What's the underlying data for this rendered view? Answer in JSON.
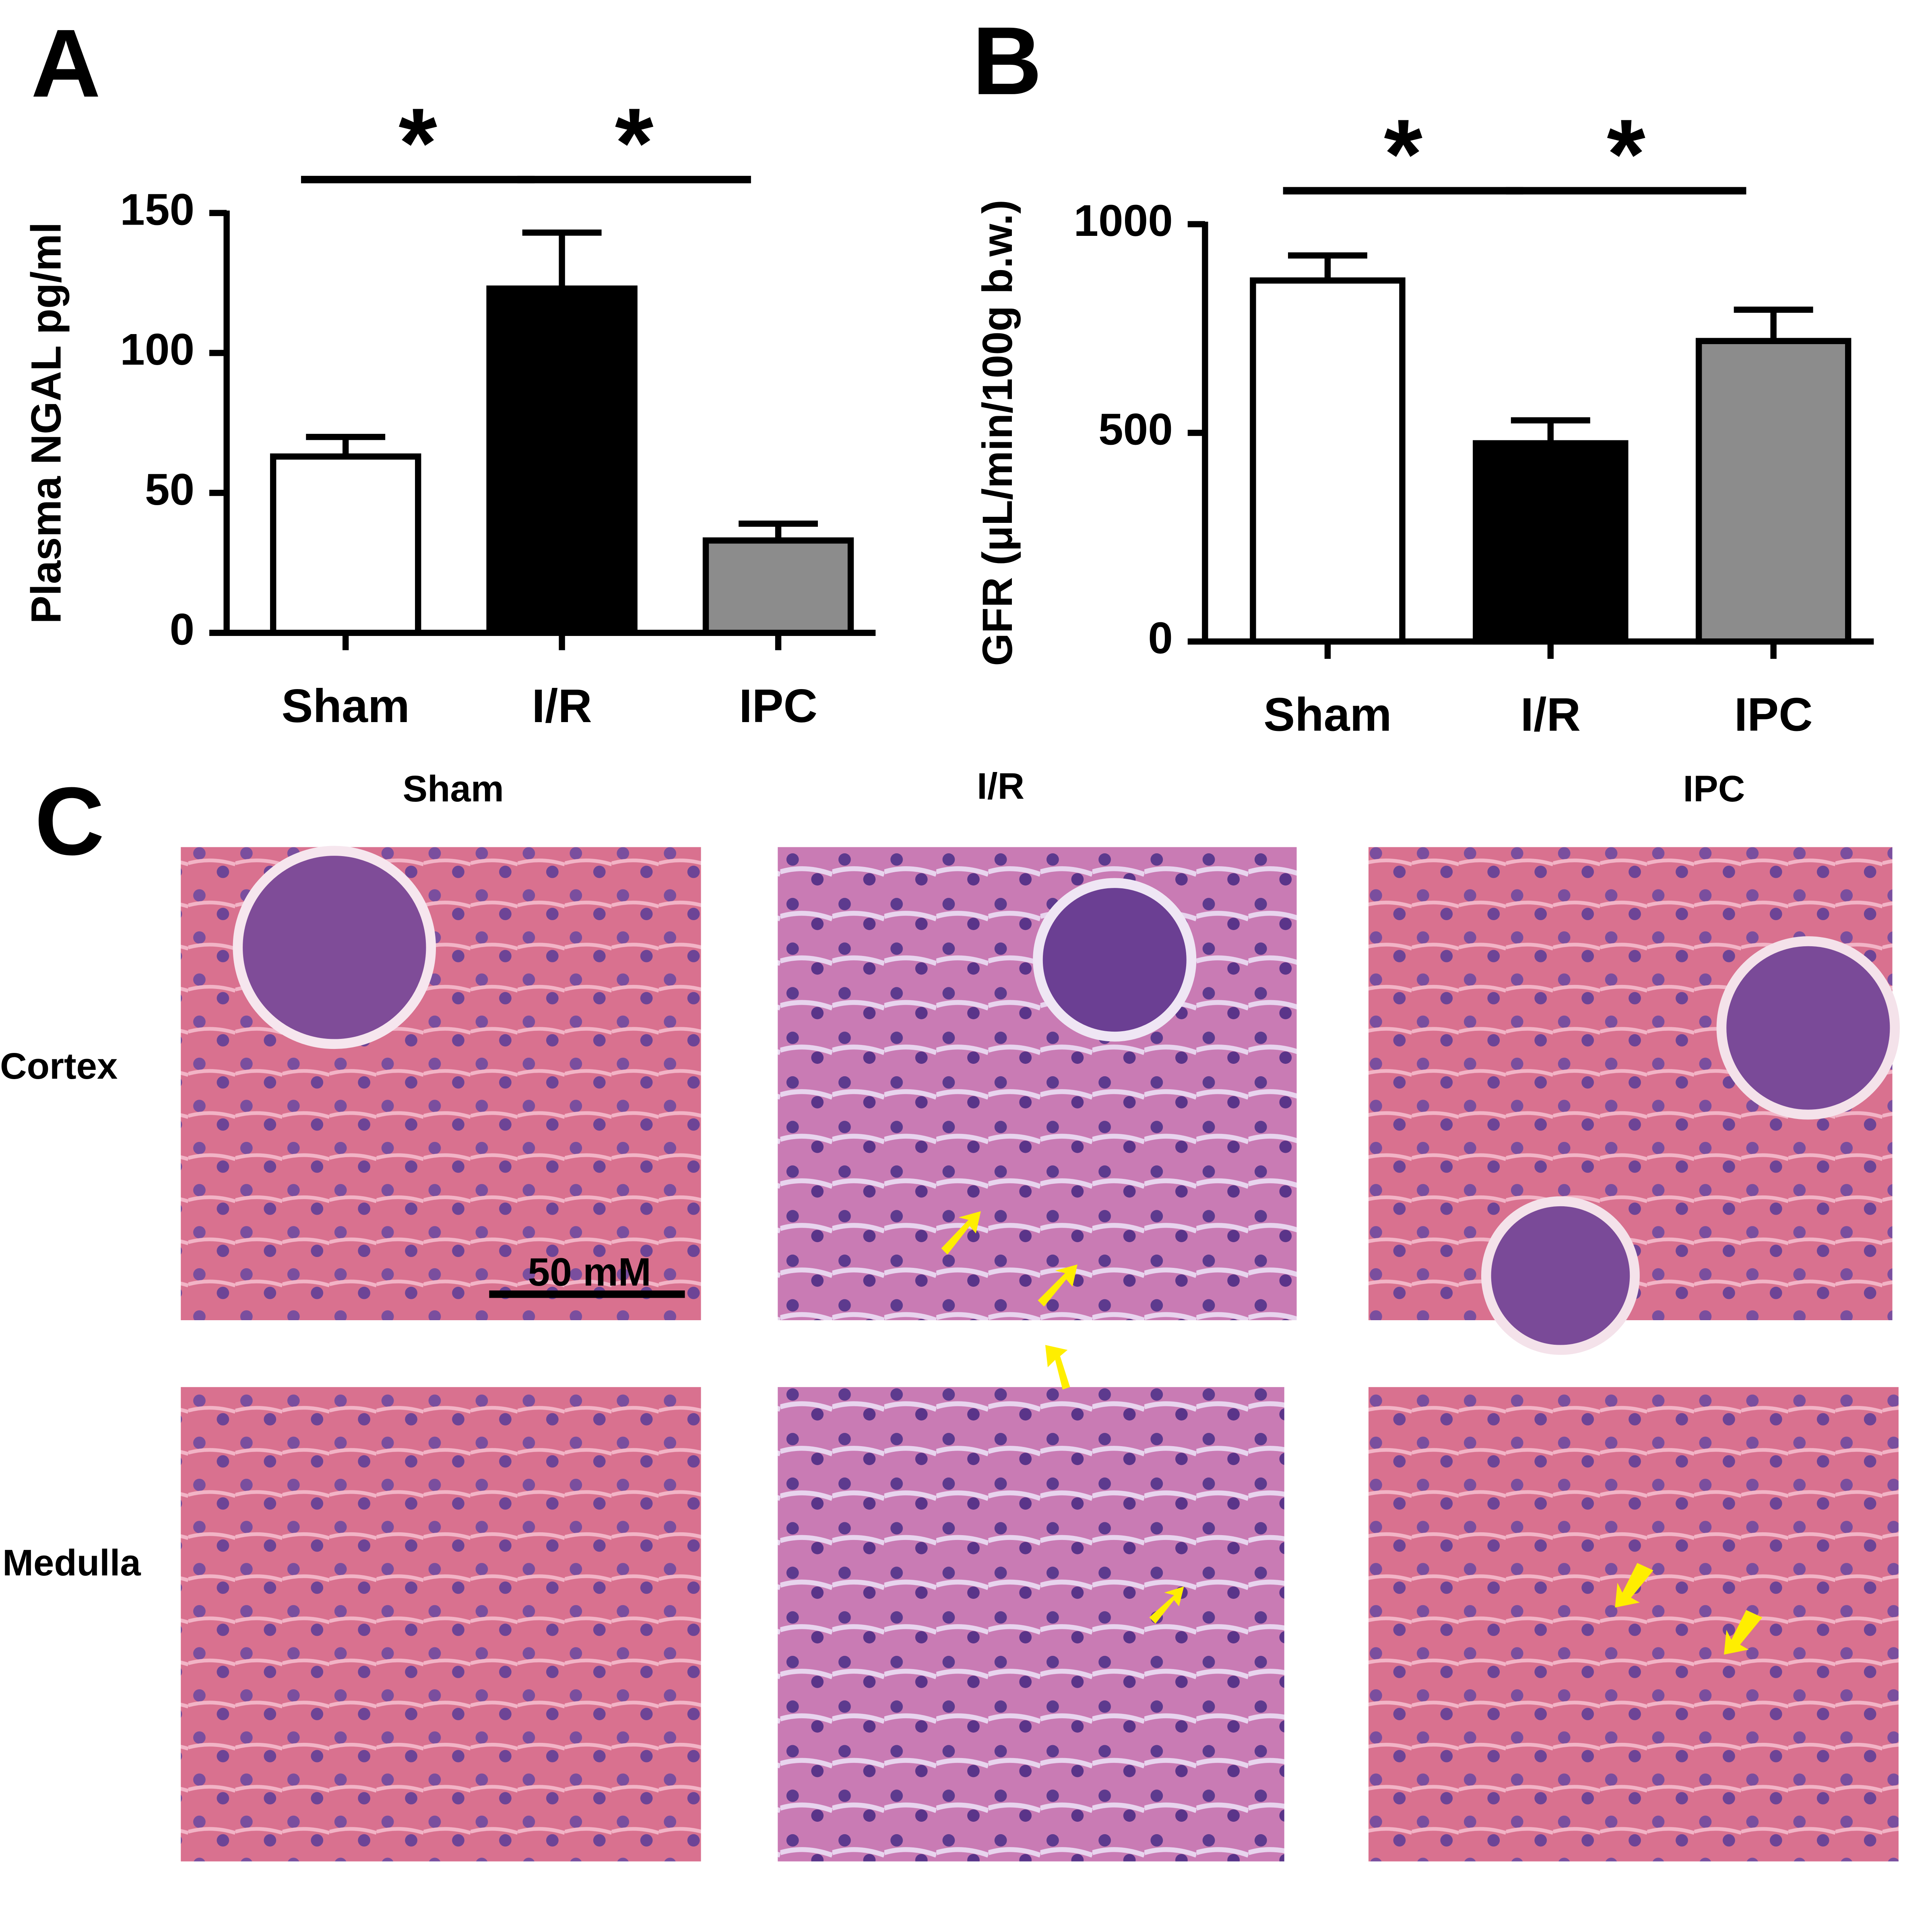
{
  "chart_data": [
    {
      "type": "bar",
      "panel": "A",
      "ylabel": "Plasma NGAL pg/ml",
      "categories": [
        "Sham",
        "I/R",
        "IPC"
      ],
      "values": [
        63,
        123,
        33
      ],
      "errors": [
        7,
        20,
        6
      ],
      "colors": [
        "#ffffff",
        "#000000",
        "#8c8c8c"
      ],
      "ylim": [
        0,
        150
      ],
      "yticks": [
        0,
        50,
        100,
        150
      ],
      "annotations": [
        "*",
        "*"
      ]
    },
    {
      "type": "bar",
      "panel": "B",
      "ylabel": "GFR (μL/min/100g b.w.)",
      "categories": [
        "Sham",
        "I/R",
        "IPC"
      ],
      "values": [
        865,
        475,
        720
      ],
      "errors": [
        60,
        55,
        75
      ],
      "colors": [
        "#ffffff",
        "#000000",
        "#8c8c8c"
      ],
      "ylim": [
        0,
        1000
      ],
      "yticks": [
        0,
        500,
        1000
      ],
      "annotations": [
        "*",
        "*"
      ]
    }
  ],
  "panel_c": {
    "label": "C",
    "columns": [
      "Sham",
      "I/R",
      "IPC"
    ],
    "rows": [
      "Cortex",
      "Medulla"
    ],
    "scale_bar": "50 mM"
  }
}
